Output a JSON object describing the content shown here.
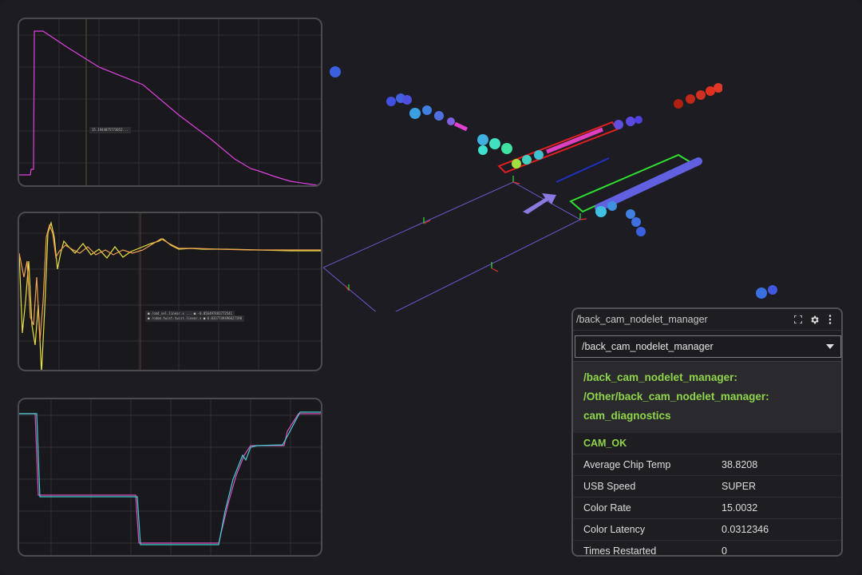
{
  "diagnostics_panel": {
    "title": "/back_cam_nodelet_manager",
    "selector_value": "/back_cam_nodelet_manager",
    "section_lines": [
      "/back_cam_nodelet_manager:",
      "/Other/back_cam_nodelet_manager:",
      "cam_diagnostics"
    ],
    "status": "CAM_OK",
    "rows": [
      {
        "key": "Average Chip Temp",
        "value": "38.8208"
      },
      {
        "key": "USB Speed",
        "value": "SUPER"
      },
      {
        "key": "Color Rate",
        "value": "15.0032"
      },
      {
        "key": "Color Latency",
        "value": "0.0312346"
      },
      {
        "key": "Times Restarted",
        "value": "0"
      }
    ],
    "icons": [
      "fullscreen-icon",
      "gear-icon",
      "more-vertical-icon"
    ],
    "status_color": "#8fd44a"
  },
  "plots": {
    "plot1_tooltip": "15.1944075773052...",
    "plot2_tooltip_lines": [
      "■ /cmd_vel.linear.x ... ■ -0.056497481772541",
      "■ /odom.twist.twist.linear.x ■ 0.0337749496027198"
    ],
    "colors": {
      "magenta": "#e040e0",
      "orange": "#f0a050",
      "yellow": "#e8e040",
      "cyan": "#40d0d0",
      "pink": "#e050c0"
    }
  },
  "scene": {
    "colors": {
      "red_box": "#e02020",
      "green_box": "#30e030",
      "grid": "#6a5acd",
      "arrow": "#8a7ae0"
    }
  }
}
